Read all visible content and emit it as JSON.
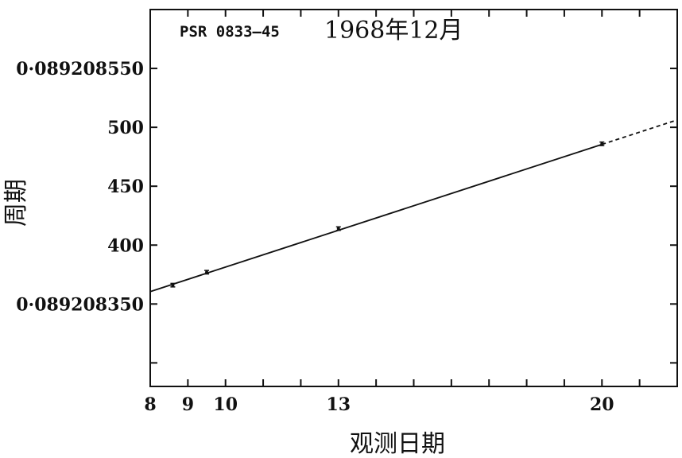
{
  "chart_data": {
    "type": "line",
    "title": "",
    "annotation": {
      "source": "PSR 0833–45",
      "date": "1968年12月"
    },
    "xlabel": "观测日期",
    "ylabel": "周期",
    "xlim": [
      8,
      22
    ],
    "ylim": [
      0.08920828,
      0.0892086
    ],
    "x_ticks": [
      8,
      9,
      10,
      11,
      12,
      13,
      14,
      15,
      16,
      17,
      18,
      19,
      20,
      21,
      22
    ],
    "x_tick_labels": [
      {
        "x": 8,
        "label": "8"
      },
      {
        "x": 9,
        "label": "9"
      },
      {
        "x": 10,
        "label": "10"
      },
      {
        "x": 13,
        "label": "13"
      },
      {
        "x": 20,
        "label": "20"
      }
    ],
    "y_ticks": [
      0.0892083,
      0.08920835,
      0.0892084,
      0.08920845,
      0.0892085,
      0.08920855,
      0.0892086
    ],
    "y_tick_labels": [
      {
        "y": 0.08920835,
        "label": "0·089208350"
      },
      {
        "y": 0.0892084,
        "label": "400"
      },
      {
        "y": 0.08920845,
        "label": "450"
      },
      {
        "y": 0.0892085,
        "label": "500"
      },
      {
        "y": 0.08920855,
        "label": "0·089208550"
      }
    ],
    "grid": false,
    "series": [
      {
        "kind": "points",
        "x": [
          8.6,
          9.5,
          13.0,
          20.0
        ],
        "y": [
          0.089208366,
          0.089208377,
          0.089208414,
          0.089208486
        ],
        "y_err": [
          1.5e-09,
          1.5e-09,
          1.5e-09,
          1.5e-09
        ]
      },
      {
        "kind": "fit",
        "style": "solid",
        "x": [
          8,
          20
        ],
        "y": [
          0.0892083605,
          0.0892084855
        ]
      },
      {
        "kind": "fit",
        "style": "dashed",
        "x": [
          20,
          22
        ],
        "y": [
          0.0892084855,
          0.0892085063
        ]
      }
    ]
  }
}
